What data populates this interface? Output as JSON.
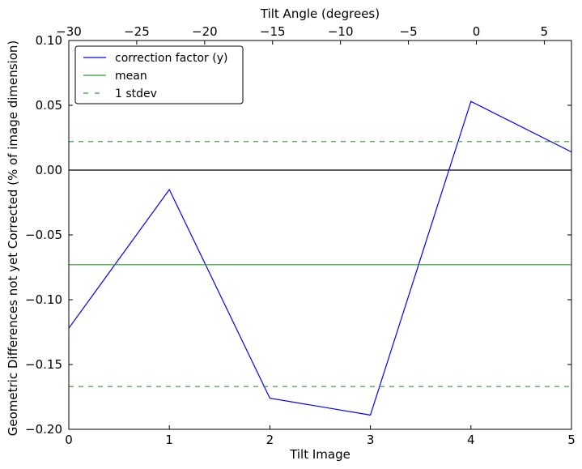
{
  "chart_data": {
    "type": "line",
    "xlabel": "Tilt Image",
    "x_top_label": "Tilt Angle (degrees)",
    "ylabel": "Geometric Differences not yet Corrected (% of image dimension)",
    "xlim": [
      0,
      5
    ],
    "ylim": [
      -0.2,
      0.1
    ],
    "x_ticks": [
      "0",
      "1",
      "2",
      "3",
      "4",
      "5"
    ],
    "x_top_lim": [
      -30,
      7
    ],
    "x_top_ticks": [
      {
        "value": -30,
        "label": "−30"
      },
      {
        "value": -25,
        "label": "−25"
      },
      {
        "value": -20,
        "label": "−20"
      },
      {
        "value": -15,
        "label": "−15"
      },
      {
        "value": -10,
        "label": "−10"
      },
      {
        "value": -5,
        "label": "−5"
      },
      {
        "value": 0,
        "label": "0"
      },
      {
        "value": 5,
        "label": "5"
      }
    ],
    "y_ticks": [
      {
        "value": 0.1,
        "label": "0.10"
      },
      {
        "value": 0.05,
        "label": "0.05"
      },
      {
        "value": 0.0,
        "label": "0.00"
      },
      {
        "value": -0.05,
        "label": "−0.05"
      },
      {
        "value": -0.1,
        "label": "−0.10"
      },
      {
        "value": -0.15,
        "label": "−0.15"
      },
      {
        "value": -0.2,
        "label": "−0.20"
      }
    ],
    "series": [
      {
        "name": "correction factor (y)",
        "color": "#0000ff",
        "style": "solid",
        "x": [
          0,
          1,
          2,
          3,
          4,
          5
        ],
        "values": [
          -0.122,
          -0.015,
          -0.176,
          -0.189,
          0.053,
          0.014
        ]
      },
      {
        "name": "mean",
        "color": "#339933",
        "style": "solid",
        "x": [
          0,
          5
        ],
        "values": [
          -0.073,
          -0.073
        ]
      },
      {
        "name": "1 stdev",
        "color": "#339933",
        "style": "dashed",
        "x": [
          0,
          5
        ],
        "values": [
          0.022,
          0.022
        ]
      },
      {
        "name": "",
        "color": "#339933",
        "style": "dashed",
        "x": [
          0,
          5
        ],
        "values": [
          -0.167,
          -0.167
        ]
      }
    ],
    "zero_line": {
      "value": 0.0,
      "color": "#000000"
    },
    "legend": {
      "position": "top-left",
      "entries": [
        "correction factor (y)",
        "mean",
        "1 stdev"
      ]
    },
    "grid": false
  }
}
